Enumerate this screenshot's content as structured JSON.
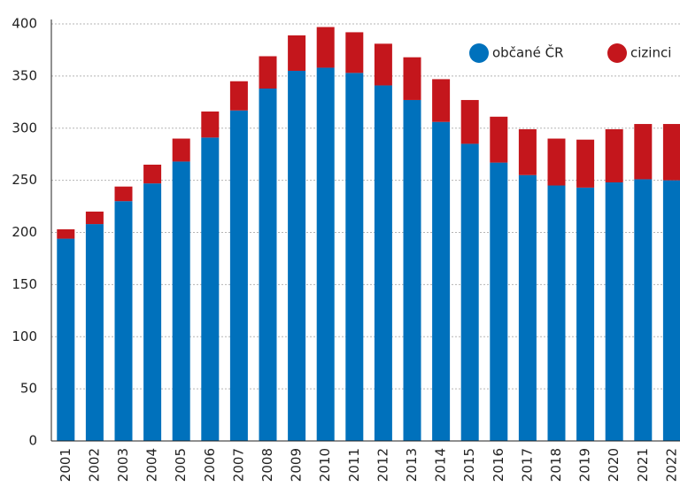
{
  "chart_data": {
    "type": "stacked_bar",
    "categories": [
      "2001",
      "2002",
      "2003",
      "2004",
      "2005",
      "2006",
      "2007",
      "2008",
      "2009",
      "2010",
      "2011",
      "2012",
      "2013",
      "2014",
      "2015",
      "2016",
      "2017",
      "2018",
      "2019",
      "2020",
      "2021",
      "2022"
    ],
    "series": [
      {
        "name": "občané ČR",
        "color": "#0071bc",
        "values": [
          194,
          208,
          230,
          247,
          268,
          291,
          317,
          338,
          355,
          358,
          353,
          341,
          327,
          306,
          285,
          267,
          255,
          245,
          243,
          248,
          251,
          250
        ]
      },
      {
        "name": "cizinci",
        "color": "#c4161c",
        "values": [
          9,
          12,
          14,
          18,
          22,
          25,
          28,
          31,
          34,
          39,
          39,
          40,
          41,
          41,
          42,
          44,
          44,
          45,
          46,
          51,
          53,
          54
        ]
      }
    ],
    "ylim": [
      0,
      400
    ],
    "yticks": [
      0,
      50,
      100,
      150,
      200,
      250,
      300,
      350,
      400
    ],
    "grid": true,
    "legend": "upper right"
  }
}
